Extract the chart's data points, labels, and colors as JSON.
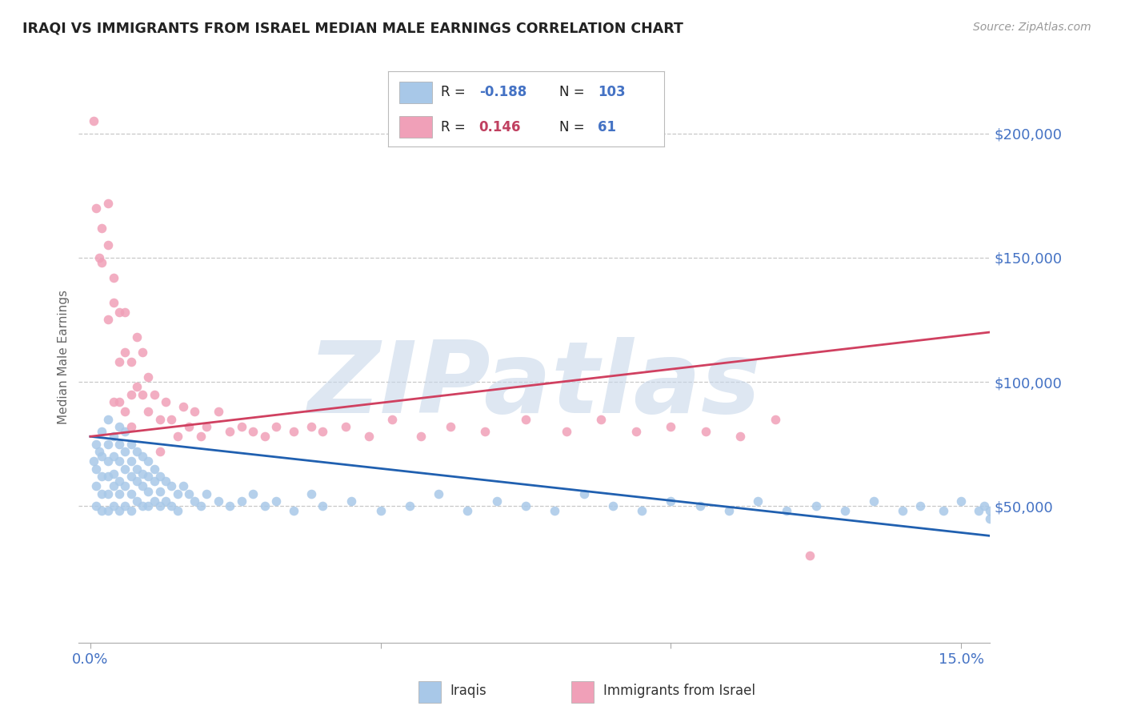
{
  "title": "IRAQI VS IMMIGRANTS FROM ISRAEL MEDIAN MALE EARNINGS CORRELATION CHART",
  "source": "Source: ZipAtlas.com",
  "ylabel": "Median Male Earnings",
  "xlim": [
    -0.002,
    0.155
  ],
  "ylim": [
    -5000,
    225000
  ],
  "xticks": [
    0.0,
    0.05,
    0.1,
    0.15
  ],
  "xtick_labels": [
    "0.0%",
    "",
    "",
    "15.0%"
  ],
  "ytick_values": [
    50000,
    100000,
    150000,
    200000
  ],
  "ytick_labels": [
    "$50,000",
    "$100,000",
    "$150,000",
    "$200,000"
  ],
  "background_color": "#ffffff",
  "grid_color": "#c8c8c8",
  "title_color": "#222222",
  "tick_label_color": "#4472c4",
  "watermark": "ZIPatlas",
  "watermark_color": "#c8d8ea",
  "series": [
    {
      "name": "Iraqis",
      "R_text": "-0.188",
      "N_text": "103",
      "marker_color": "#a8c8e8",
      "trend_color": "#2060b0",
      "trend_x": [
        0.0,
        0.155
      ],
      "trend_y": [
        78000,
        38000
      ],
      "x": [
        0.0005,
        0.001,
        0.001,
        0.001,
        0.001,
        0.0015,
        0.002,
        0.002,
        0.002,
        0.002,
        0.002,
        0.003,
        0.003,
        0.003,
        0.003,
        0.003,
        0.003,
        0.004,
        0.004,
        0.004,
        0.004,
        0.004,
        0.005,
        0.005,
        0.005,
        0.005,
        0.005,
        0.005,
        0.006,
        0.006,
        0.006,
        0.006,
        0.006,
        0.007,
        0.007,
        0.007,
        0.007,
        0.007,
        0.008,
        0.008,
        0.008,
        0.008,
        0.009,
        0.009,
        0.009,
        0.009,
        0.01,
        0.01,
        0.01,
        0.01,
        0.011,
        0.011,
        0.011,
        0.012,
        0.012,
        0.012,
        0.013,
        0.013,
        0.014,
        0.014,
        0.015,
        0.015,
        0.016,
        0.017,
        0.018,
        0.019,
        0.02,
        0.022,
        0.024,
        0.026,
        0.028,
        0.03,
        0.032,
        0.035,
        0.038,
        0.04,
        0.045,
        0.05,
        0.055,
        0.06,
        0.065,
        0.07,
        0.075,
        0.08,
        0.085,
        0.09,
        0.095,
        0.1,
        0.105,
        0.11,
        0.115,
        0.12,
        0.125,
        0.13,
        0.135,
        0.14,
        0.143,
        0.147,
        0.15,
        0.153,
        0.154,
        0.155,
        0.155
      ],
      "y": [
        68000,
        75000,
        65000,
        58000,
        50000,
        72000,
        80000,
        70000,
        62000,
        55000,
        48000,
        85000,
        75000,
        68000,
        62000,
        55000,
        48000,
        78000,
        70000,
        63000,
        58000,
        50000,
        82000,
        75000,
        68000,
        60000,
        55000,
        48000,
        80000,
        72000,
        65000,
        58000,
        50000,
        75000,
        68000,
        62000,
        55000,
        48000,
        72000,
        65000,
        60000,
        52000,
        70000,
        63000,
        58000,
        50000,
        68000,
        62000,
        56000,
        50000,
        65000,
        60000,
        52000,
        62000,
        56000,
        50000,
        60000,
        52000,
        58000,
        50000,
        55000,
        48000,
        58000,
        55000,
        52000,
        50000,
        55000,
        52000,
        50000,
        52000,
        55000,
        50000,
        52000,
        48000,
        55000,
        50000,
        52000,
        48000,
        50000,
        55000,
        48000,
        52000,
        50000,
        48000,
        55000,
        50000,
        48000,
        52000,
        50000,
        48000,
        52000,
        48000,
        50000,
        48000,
        52000,
        48000,
        50000,
        48000,
        52000,
        48000,
        50000,
        48000,
        45000
      ]
    },
    {
      "name": "Immigrants from Israel",
      "R_text": "0.146",
      "N_text": "61",
      "marker_color": "#f0a0b8",
      "trend_color": "#d04060",
      "trend_x": [
        0.0,
        0.155
      ],
      "trend_y": [
        78000,
        120000
      ],
      "x": [
        0.0005,
        0.001,
        0.0015,
        0.002,
        0.002,
        0.003,
        0.003,
        0.003,
        0.004,
        0.004,
        0.004,
        0.005,
        0.005,
        0.005,
        0.006,
        0.006,
        0.006,
        0.007,
        0.007,
        0.007,
        0.008,
        0.008,
        0.009,
        0.009,
        0.01,
        0.01,
        0.011,
        0.012,
        0.012,
        0.013,
        0.014,
        0.015,
        0.016,
        0.017,
        0.018,
        0.019,
        0.02,
        0.022,
        0.024,
        0.026,
        0.028,
        0.03,
        0.032,
        0.035,
        0.038,
        0.04,
        0.044,
        0.048,
        0.052,
        0.057,
        0.062,
        0.068,
        0.075,
        0.082,
        0.088,
        0.094,
        0.1,
        0.106,
        0.112,
        0.118,
        0.124
      ],
      "y": [
        205000,
        170000,
        150000,
        162000,
        148000,
        172000,
        155000,
        125000,
        142000,
        132000,
        92000,
        128000,
        108000,
        92000,
        128000,
        112000,
        88000,
        108000,
        95000,
        82000,
        118000,
        98000,
        112000,
        95000,
        102000,
        88000,
        95000,
        85000,
        72000,
        92000,
        85000,
        78000,
        90000,
        82000,
        88000,
        78000,
        82000,
        88000,
        80000,
        82000,
        80000,
        78000,
        82000,
        80000,
        82000,
        80000,
        82000,
        78000,
        85000,
        78000,
        82000,
        80000,
        85000,
        80000,
        85000,
        80000,
        82000,
        80000,
        78000,
        85000,
        30000
      ]
    }
  ]
}
